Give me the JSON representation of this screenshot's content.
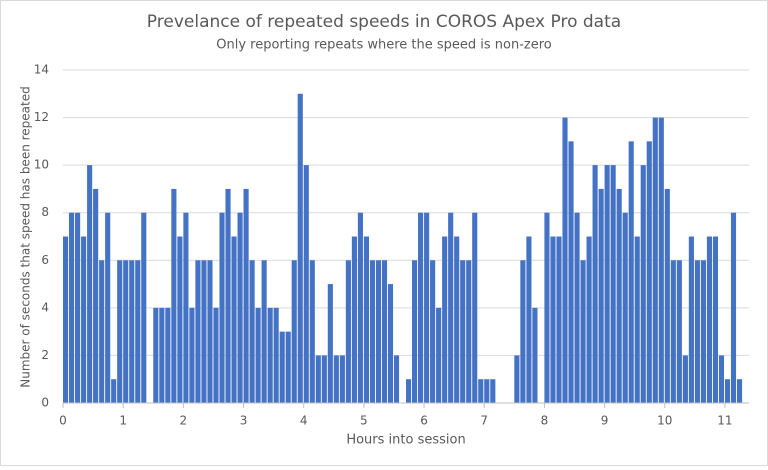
{
  "chart_data": {
    "type": "bar",
    "title": "Prevelance of repeated speeds in COROS Apex Pro data",
    "subtitle": "Only reporting repeats where the speed is non-zero",
    "x_label": "Hours into session",
    "y_label": "Number of seconds that speed has been repeated",
    "color": "#4472c4",
    "grid": true,
    "x": [
      0.0,
      0.1,
      0.2,
      0.3,
      0.4,
      0.5,
      0.6,
      0.7,
      0.8,
      0.9,
      1.0,
      1.1,
      1.2,
      1.3,
      1.4,
      1.5,
      1.6,
      1.7,
      1.8,
      1.9,
      2.0,
      2.1,
      2.2,
      2.3,
      2.4,
      2.5,
      2.6,
      2.7,
      2.8,
      2.9,
      3.0,
      3.1,
      3.2,
      3.3,
      3.4,
      3.5,
      3.6,
      3.7,
      3.8,
      3.9,
      4.0,
      4.1,
      4.2,
      4.3,
      4.4,
      4.5,
      4.6,
      4.7,
      4.8,
      4.9,
      5.0,
      5.1,
      5.2,
      5.3,
      5.4,
      5.5,
      5.6,
      5.7,
      5.8,
      5.9,
      6.0,
      6.1,
      6.2,
      6.3,
      6.4,
      6.5,
      6.6,
      6.7,
      6.8,
      6.9,
      7.0,
      7.1,
      7.2,
      7.3,
      7.4,
      7.5,
      7.6,
      7.7,
      7.8,
      7.9,
      8.0,
      8.1,
      8.2,
      8.3,
      8.4,
      8.5,
      8.6,
      8.7,
      8.8,
      8.9,
      9.0,
      9.1,
      9.2,
      9.3,
      9.4,
      9.5,
      9.6,
      9.7,
      9.8,
      9.9,
      10.0,
      10.1,
      10.2,
      10.3,
      10.4,
      10.5,
      10.6,
      10.7,
      10.8,
      10.9,
      11.0,
      11.1,
      11.2
    ],
    "values": [
      7,
      8,
      8,
      7,
      10,
      9,
      6,
      8,
      1,
      6,
      6,
      6,
      6,
      8,
      0,
      4,
      4,
      4,
      9,
      7,
      8,
      4,
      6,
      6,
      6,
      4,
      8,
      9,
      7,
      8,
      9,
      6,
      4,
      6,
      4,
      4,
      3,
      3,
      6,
      13,
      10,
      6,
      2,
      2,
      5,
      2,
      2,
      6,
      7,
      8,
      7,
      6,
      6,
      6,
      5,
      2,
      0,
      1,
      6,
      8,
      8,
      6,
      4,
      7,
      8,
      7,
      6,
      6,
      8,
      1,
      1,
      1,
      0,
      0,
      0,
      2,
      6,
      7,
      4,
      0,
      8,
      7,
      7,
      12,
      11,
      8,
      6,
      7,
      10,
      9,
      10,
      10,
      9,
      8,
      11,
      7,
      10,
      11,
      12,
      12,
      9,
      6,
      6,
      2,
      7,
      6,
      6,
      7,
      7,
      2,
      1,
      8,
      1
    ],
    "xlim": [
      0,
      11.4
    ],
    "ylim": [
      0,
      14
    ],
    "xticks": [
      0,
      1,
      2,
      3,
      4,
      5,
      6,
      7,
      8,
      9,
      10,
      11
    ],
    "yticks": [
      0,
      2,
      4,
      6,
      8,
      10,
      12,
      14
    ]
  }
}
